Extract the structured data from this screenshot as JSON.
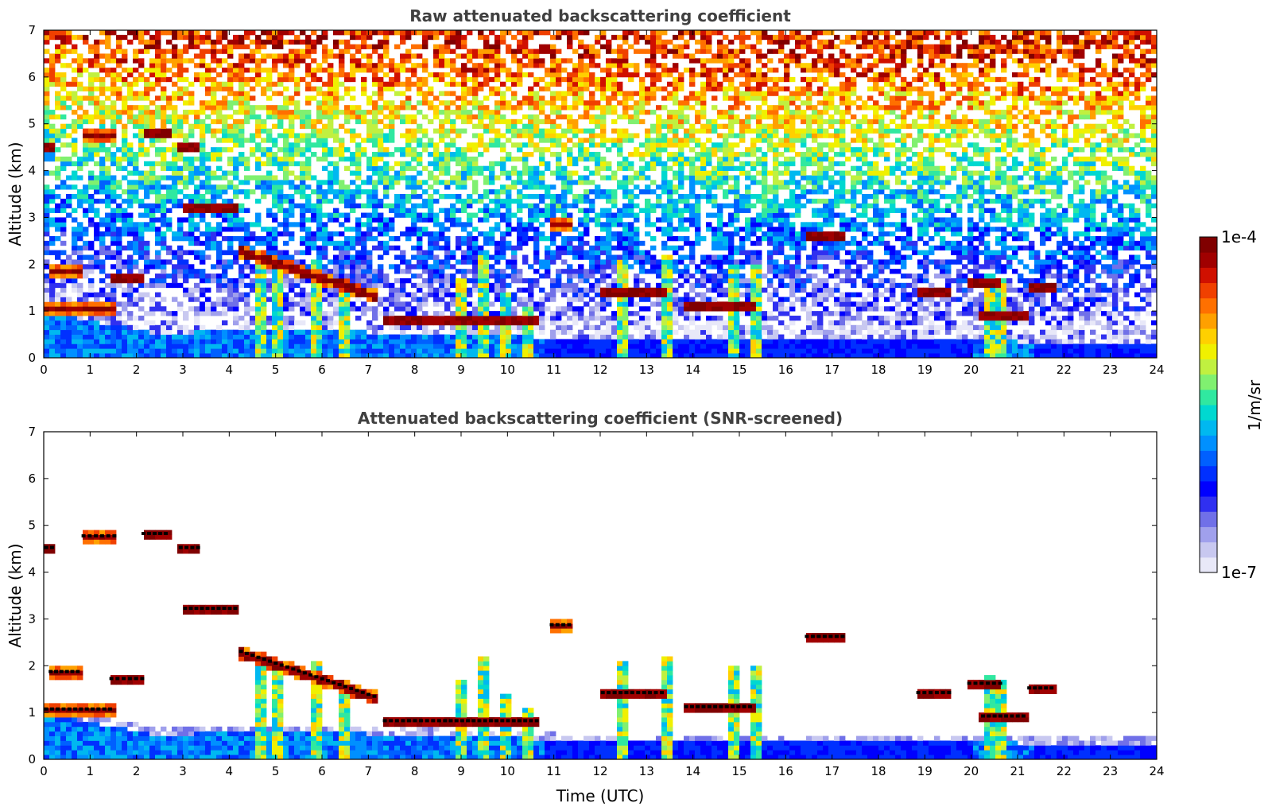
{
  "chart_data": [
    {
      "type": "heatmap",
      "title": "Raw attenuated backscattering coefficient",
      "xlabel": "",
      "ylabel": "Altitude (km)",
      "xlim": [
        0,
        24
      ],
      "ylim": [
        0,
        7
      ],
      "x_ticks": [
        "0",
        "1",
        "2",
        "3",
        "4",
        "5",
        "6",
        "7",
        "8",
        "9",
        "10",
        "11",
        "12",
        "13",
        "14",
        "15",
        "16",
        "17",
        "18",
        "19",
        "20",
        "21",
        "22",
        "23",
        "24"
      ],
      "y_ticks": [
        "0",
        "1",
        "2",
        "3",
        "4",
        "5",
        "6",
        "7"
      ],
      "screened": false,
      "features": {
        "boundary_layer_top_km": [
          [
            0,
            1.0
          ],
          [
            0.5,
            0.9
          ],
          [
            1.5,
            0.7
          ],
          [
            2.5,
            0.5
          ],
          [
            4.0,
            0.6
          ],
          [
            5.5,
            0.6
          ],
          [
            7.0,
            0.55
          ],
          [
            8.5,
            0.5
          ],
          [
            10.5,
            0.45
          ],
          [
            11,
            0.4
          ],
          [
            14,
            0.4
          ],
          [
            18,
            0.4
          ],
          [
            21,
            0.35
          ],
          [
            24,
            0.3
          ]
        ],
        "cloud_layers": [
          {
            "t0": 0.8,
            "t1": 1.6,
            "alt": 4.75
          },
          {
            "t0": 2.1,
            "t1": 2.7,
            "alt": 4.8
          },
          {
            "t0": 2.9,
            "t1": 3.4,
            "alt": 4.5
          },
          {
            "t0": 0.0,
            "t1": 0.25,
            "alt": 4.5
          },
          {
            "t0": 3.0,
            "t1": 4.2,
            "alt": 3.2
          },
          {
            "t0": 4.2,
            "t1": 7.2,
            "alt": 1.8
          },
          {
            "t0": 1.4,
            "t1": 2.2,
            "alt": 1.7
          },
          {
            "t0": 0.1,
            "t1": 0.8,
            "alt": 1.85
          },
          {
            "t0": 0.0,
            "t1": 1.5,
            "alt": 1.05
          },
          {
            "t0": 7.3,
            "t1": 8.6,
            "alt": 0.8
          },
          {
            "t0": 8.6,
            "t1": 10.7,
            "alt": 0.8
          },
          {
            "t0": 10.9,
            "t1": 11.4,
            "alt": 2.85
          },
          {
            "t0": 12.0,
            "t1": 13.4,
            "alt": 1.4
          },
          {
            "t0": 13.8,
            "t1": 15.3,
            "alt": 1.1
          },
          {
            "t0": 16.4,
            "t1": 17.3,
            "alt": 2.6
          },
          {
            "t0": 18.8,
            "t1": 19.6,
            "alt": 1.4
          },
          {
            "t0": 19.9,
            "t1": 20.7,
            "alt": 1.6
          },
          {
            "t0": 20.2,
            "t1": 21.2,
            "alt": 0.9
          },
          {
            "t0": 21.2,
            "t1": 21.8,
            "alt": 1.5
          }
        ],
        "precipitation_shafts": [
          {
            "t": 4.7,
            "top": 2.1
          },
          {
            "t": 5.0,
            "top": 2.0
          },
          {
            "t": 5.9,
            "top": 2.1
          },
          {
            "t": 6.5,
            "top": 1.6
          },
          {
            "t": 9.0,
            "top": 1.7
          },
          {
            "t": 9.5,
            "top": 2.2
          },
          {
            "t": 9.9,
            "top": 1.4
          },
          {
            "t": 10.4,
            "top": 1.1
          },
          {
            "t": 12.5,
            "top": 2.1
          },
          {
            "t": 13.4,
            "top": 2.2
          },
          {
            "t": 14.9,
            "top": 2.0
          },
          {
            "t": 15.4,
            "top": 2.0
          },
          {
            "t": 20.4,
            "top": 1.8
          },
          {
            "t": 20.6,
            "top": 1.7
          }
        ]
      }
    },
    {
      "type": "heatmap",
      "title": "Attenuated backscattering coefficient (SNR-screened)",
      "xlabel": "Time (UTC)",
      "ylabel": "Altitude (km)",
      "xlim": [
        0,
        24
      ],
      "ylim": [
        0,
        7
      ],
      "x_ticks": [
        "0",
        "1",
        "2",
        "3",
        "4",
        "5",
        "6",
        "7",
        "8",
        "9",
        "10",
        "11",
        "12",
        "13",
        "14",
        "15",
        "16",
        "17",
        "18",
        "19",
        "20",
        "21",
        "22",
        "23",
        "24"
      ],
      "y_ticks": [
        "0",
        "1",
        "2",
        "3",
        "4",
        "5",
        "6",
        "7"
      ],
      "screened": true
    }
  ],
  "colorbar": {
    "min_label": "1e-7",
    "max_label": "1e-4",
    "unit_label": "1/m/sr",
    "scale": "log",
    "colors": [
      "#e8e8f8",
      "#c8c8f0",
      "#a0a0ec",
      "#7070e8",
      "#3030f0",
      "#0000ff",
      "#0030ff",
      "#0060ff",
      "#0090ff",
      "#00b8f0",
      "#00d8d0",
      "#30e8a0",
      "#80f070",
      "#c0f040",
      "#f0f000",
      "#ffd000",
      "#ffa000",
      "#ff7000",
      "#f04000",
      "#d01000",
      "#a00000",
      "#800000"
    ]
  }
}
